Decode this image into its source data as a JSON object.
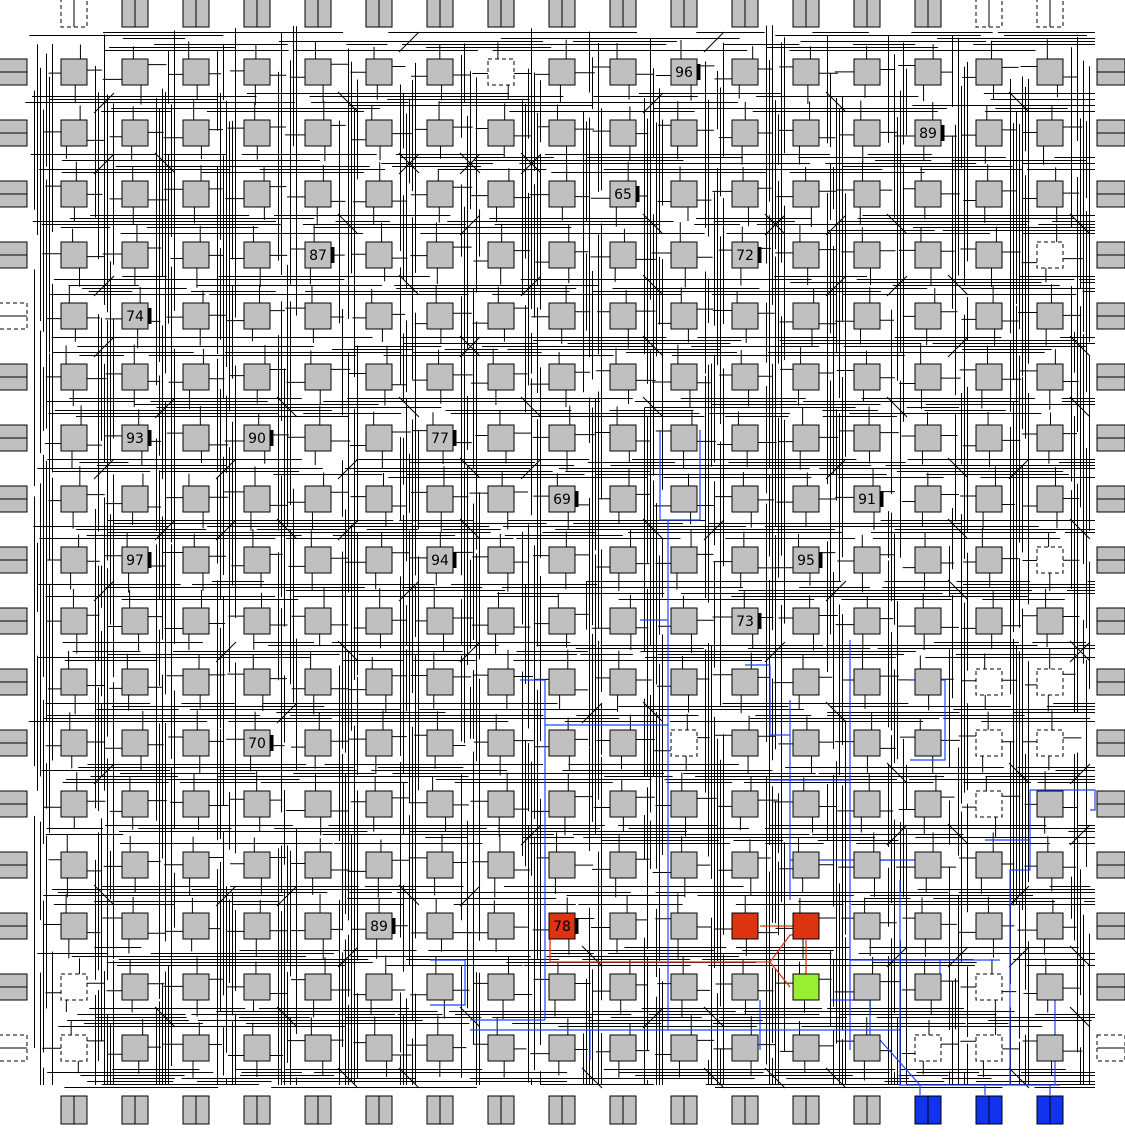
{
  "blocks": [
    {
      "label": "96"
    },
    {
      "label": "89"
    },
    {
      "label": "65"
    },
    {
      "label": "87"
    },
    {
      "label": "72"
    },
    {
      "label": "74"
    },
    {
      "label": "93"
    },
    {
      "label": "90"
    },
    {
      "label": "77"
    },
    {
      "label": "69"
    },
    {
      "label": "91"
    },
    {
      "label": "97"
    },
    {
      "label": "94"
    },
    {
      "label": "95"
    },
    {
      "label": "73"
    },
    {
      "label": "70"
    },
    {
      "label": "89"
    },
    {
      "label": "78"
    }
  ]
}
